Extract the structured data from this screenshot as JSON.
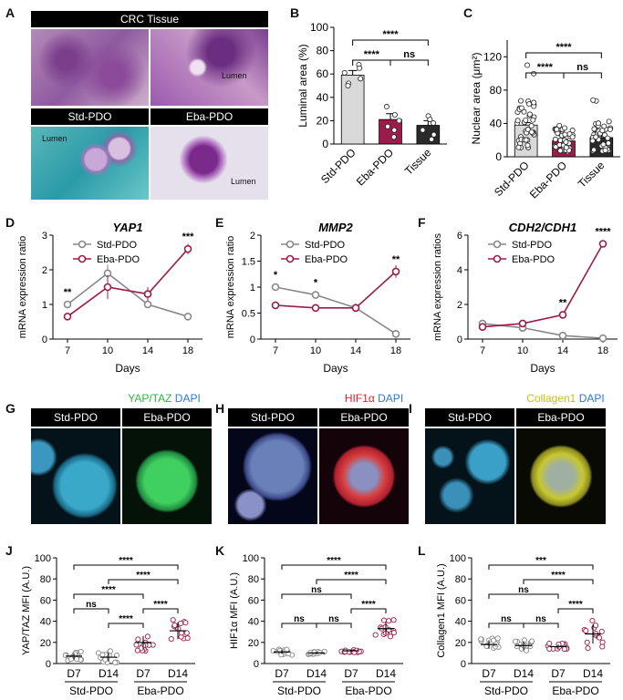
{
  "panels": {
    "A": {
      "label": "A",
      "header_top": "CRC Tissue",
      "header_std": "Std-PDO",
      "header_eba": "Eba-PDO",
      "lumen_labels": [
        "Lumen",
        "Lumen",
        "Lumen"
      ]
    },
    "B": {
      "label": "B"
    },
    "C": {
      "label": "C"
    },
    "D": {
      "label": "D"
    },
    "E": {
      "label": "E"
    },
    "F": {
      "label": "F"
    },
    "G": {
      "label": "G",
      "stain_main": "YAP/TAZ",
      "stain_dapi": "DAPI",
      "header_std": "Std-PDO",
      "header_eba": "Eba-PDO"
    },
    "H": {
      "label": "H",
      "stain_main": "HIF1α",
      "stain_dapi": "DAPI",
      "header_std": "Std-PDO",
      "header_eba": "Eba-PDO"
    },
    "I": {
      "label": "I",
      "stain_main": "Collagen1",
      "stain_dapi": "DAPI",
      "header_std": "Std-PDO",
      "header_eba": "Eba-PDO"
    },
    "J": {
      "label": "J"
    },
    "K": {
      "label": "K"
    },
    "L": {
      "label": "L"
    }
  },
  "colors": {
    "std": "#888888",
    "eba": "#9b1b4a",
    "tissue": "#2a2a2a",
    "std_bar": "#d9d9d9",
    "green_stain": "#2ecc40",
    "red_stain": "#e8202a",
    "yellow_stain": "#d8d820",
    "blue_stain": "#2aa8e0"
  },
  "chart_data": [
    {
      "id": "B",
      "type": "bar",
      "categories": [
        "Std-PDO",
        "Eba-PDO",
        "Tissue"
      ],
      "values": [
        59,
        21,
        16
      ],
      "errors": [
        4,
        5,
        4
      ],
      "points": [
        [
          68,
          65,
          61,
          56,
          52,
          50
        ],
        [
          32,
          25,
          20,
          15,
          12,
          6
        ],
        [
          24,
          21,
          18,
          12,
          8,
          4
        ]
      ],
      "ylabel": "Luminal area (%)",
      "ylim": [
        0,
        100
      ],
      "yticks": [
        0,
        20,
        40,
        60,
        80,
        100
      ],
      "brackets": [
        {
          "from": 0,
          "to": 2,
          "label": "****",
          "level": 0
        },
        {
          "from": 0,
          "to": 1,
          "label": "****",
          "level": 1
        },
        {
          "from": 1,
          "to": 2,
          "label": "ns",
          "level": 1
        }
      ]
    },
    {
      "id": "C",
      "type": "bar",
      "categories": [
        "Std-PDO",
        "Eba-PDO",
        "Tissue"
      ],
      "values": [
        38,
        19,
        23
      ],
      "errors": [
        3,
        2,
        2
      ],
      "ylabel": "Nuclear area (μm²)",
      "ylim": [
        0,
        140
      ],
      "yticks": [
        0,
        40,
        80,
        120
      ],
      "brackets": [
        {
          "from": 0,
          "to": 2,
          "label": "****",
          "level": 0
        },
        {
          "from": 0,
          "to": 1,
          "label": "****",
          "level": 1
        },
        {
          "from": 1,
          "to": 2,
          "label": "ns",
          "level": 1
        }
      ]
    },
    {
      "id": "D",
      "type": "line",
      "title": "YAP1",
      "x": [
        7,
        10,
        14,
        18
      ],
      "xlabel": "Days",
      "ylabel": "mRNA expression ratio",
      "ylim": [
        0,
        3
      ],
      "yticks": [
        0,
        1,
        2,
        3
      ],
      "series": [
        {
          "name": "Std-PDO",
          "values": [
            1.0,
            1.9,
            1.0,
            0.65
          ],
          "errors": [
            0.05,
            0.25,
            0.05,
            0.03
          ]
        },
        {
          "name": "Eba-PDO",
          "values": [
            0.65,
            1.5,
            1.3,
            2.6
          ],
          "errors": [
            0.05,
            0.35,
            0.2,
            0.15
          ]
        }
      ],
      "sig": [
        {
          "x": 7,
          "label": "**"
        },
        {
          "x": 18,
          "label": "***"
        }
      ]
    },
    {
      "id": "E",
      "type": "line",
      "title": "MMP2",
      "x": [
        7,
        10,
        14,
        18
      ],
      "xlabel": "Days",
      "ylabel": "mRNA expression ratio",
      "ylim": [
        0,
        2
      ],
      "yticks": [
        0.0,
        0.5,
        1.0,
        1.5,
        2.0
      ],
      "series": [
        {
          "name": "Std-PDO",
          "values": [
            1.0,
            0.85,
            0.6,
            0.1
          ],
          "errors": [
            0.03,
            0.04,
            0.05,
            0.02
          ]
        },
        {
          "name": "Eba-PDO",
          "values": [
            0.65,
            0.6,
            0.6,
            1.3
          ],
          "errors": [
            0.05,
            0.05,
            0.08,
            0.12
          ]
        }
      ],
      "sig": [
        {
          "x": 7,
          "label": "*"
        },
        {
          "x": 10,
          "label": "*"
        },
        {
          "x": 18,
          "label": "**"
        }
      ]
    },
    {
      "id": "F",
      "type": "line",
      "title": "CDH2/CDH1",
      "x": [
        7,
        10,
        14,
        18
      ],
      "xlabel": "Days",
      "ylabel": "mRNA expression ratios",
      "ylim": [
        0,
        6
      ],
      "yticks": [
        0,
        2,
        4,
        6
      ],
      "series": [
        {
          "name": "Std-PDO",
          "values": [
            0.9,
            0.65,
            0.2,
            0.05
          ],
          "errors": [
            0.05,
            0.05,
            0.03,
            0.02
          ]
        },
        {
          "name": "Eba-PDO",
          "values": [
            0.7,
            0.9,
            1.4,
            5.5
          ],
          "errors": [
            0.05,
            0.08,
            0.08,
            0.15
          ]
        }
      ],
      "sig": [
        {
          "x": 14,
          "label": "**"
        },
        {
          "x": 18,
          "label": "****"
        }
      ]
    },
    {
      "id": "J",
      "type": "scatter",
      "categories": [
        "D7",
        "D14",
        "D7",
        "D14"
      ],
      "groups": [
        "Std-PDO",
        "Eba-PDO"
      ],
      "means": [
        7,
        6,
        20,
        31
      ],
      "sds": [
        3,
        4,
        6,
        8
      ],
      "ylabel": "YAP/TAZ MFI  (A.U.)",
      "ylim": [
        0,
        100
      ],
      "yticks": [
        0,
        20,
        40,
        60,
        80,
        100
      ],
      "brackets": [
        {
          "from": 0,
          "to": 3,
          "label": "****",
          "level": 0
        },
        {
          "from": 1,
          "to": 3,
          "label": "****",
          "level": 1
        },
        {
          "from": 0,
          "to": 2,
          "label": "****",
          "level": 2
        },
        {
          "from": 2,
          "to": 3,
          "label": "****",
          "level": 3
        },
        {
          "from": 0,
          "to": 1,
          "label": "ns",
          "level": 3
        },
        {
          "from": 1,
          "to": 2,
          "label": "****",
          "level": 4
        }
      ]
    },
    {
      "id": "K",
      "type": "scatter",
      "categories": [
        "D7",
        "D14",
        "D7",
        "D14"
      ],
      "groups": [
        "Std-PDO",
        "Eba-PDO"
      ],
      "means": [
        11,
        10,
        12,
        33
      ],
      "sds": [
        2,
        1,
        1,
        6
      ],
      "ylabel": "HIF1α MFI  (A.U.)",
      "ylim": [
        0,
        100
      ],
      "yticks": [
        0,
        20,
        40,
        60,
        80,
        100
      ],
      "brackets": [
        {
          "from": 0,
          "to": 3,
          "label": "****",
          "level": 0
        },
        {
          "from": 1,
          "to": 3,
          "label": "****",
          "level": 1
        },
        {
          "from": 0,
          "to": 2,
          "label": "ns",
          "level": 2
        },
        {
          "from": 2,
          "to": 3,
          "label": "****",
          "level": 3
        },
        {
          "from": 0,
          "to": 1,
          "label": "ns",
          "level": 4
        },
        {
          "from": 1,
          "to": 2,
          "label": "ns",
          "level": 4
        }
      ]
    },
    {
      "id": "L",
      "type": "scatter",
      "categories": [
        "D7",
        "D14",
        "D7",
        "D14"
      ],
      "groups": [
        "Std-PDO",
        "Eba-PDO"
      ],
      "means": [
        18,
        17,
        16,
        28
      ],
      "sds": [
        4,
        4,
        2,
        9
      ],
      "ylabel": "Collagen1 MFI  (A.U.)",
      "ylim": [
        0,
        100
      ],
      "yticks": [
        0,
        20,
        40,
        60,
        80,
        100
      ],
      "brackets": [
        {
          "from": 0,
          "to": 3,
          "label": "***",
          "level": 0
        },
        {
          "from": 1,
          "to": 3,
          "label": "****",
          "level": 1
        },
        {
          "from": 0,
          "to": 2,
          "label": "ns",
          "level": 2
        },
        {
          "from": 2,
          "to": 3,
          "label": "****",
          "level": 3
        },
        {
          "from": 0,
          "to": 1,
          "label": "ns",
          "level": 4
        },
        {
          "from": 1,
          "to": 2,
          "label": "ns",
          "level": 4
        }
      ]
    }
  ]
}
